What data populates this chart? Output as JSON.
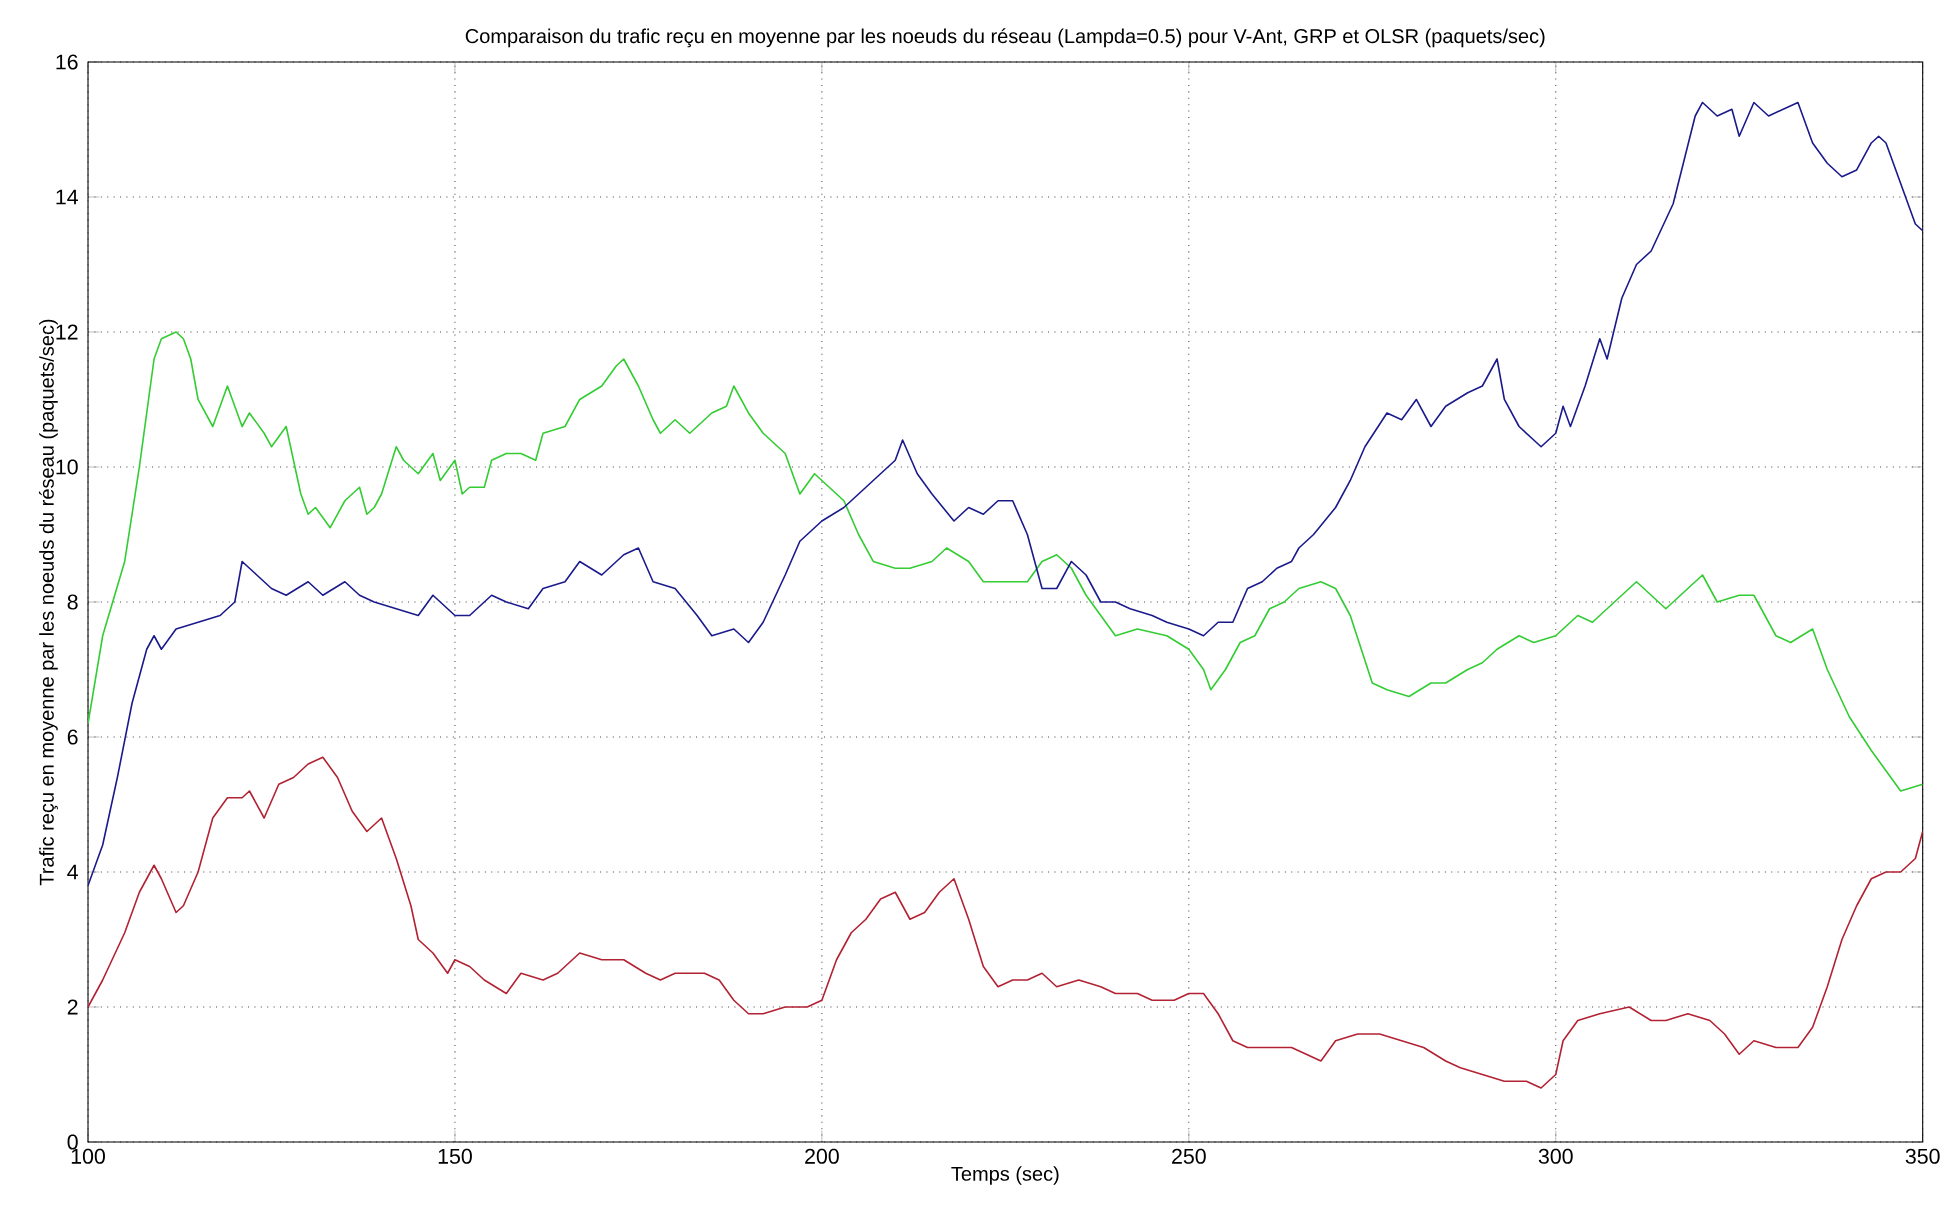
{
  "chart_data": {
    "type": "line",
    "title": "Comparaison du trafic reçu en moyenne par les noeuds du réseau (Lampda=0.5) pour V-Ant, GRP et OLSR  (paquets/sec)",
    "xlabel": "Temps (sec)",
    "ylabel": "Trafic reçu en moyenne par les noeuds du réseau (paquets/sec)",
    "xlim": [
      100,
      350
    ],
    "ylim": [
      0,
      16
    ],
    "xticks": [
      100,
      150,
      200,
      250,
      300,
      350
    ],
    "yticks": [
      0,
      2,
      4,
      6,
      8,
      10,
      12,
      14,
      16
    ],
    "grid": true,
    "line_style": "solid",
    "marker": "none",
    "series": [
      {
        "color": "#33cc33",
        "x": [
          100,
          102,
          105,
          107,
          109,
          110,
          112,
          113,
          114,
          115,
          117,
          119,
          120,
          121,
          122,
          124,
          125,
          127,
          129,
          130,
          131,
          133,
          135,
          137,
          138,
          139,
          140,
          142,
          143,
          145,
          147,
          148,
          150,
          151,
          152,
          154,
          155,
          157,
          159,
          161,
          162,
          165,
          167,
          170,
          172,
          173,
          175,
          177,
          178,
          180,
          182,
          185,
          187,
          188,
          190,
          192,
          195,
          197,
          199,
          200,
          203,
          205,
          207,
          210,
          212,
          215,
          217,
          220,
          222,
          225,
          228,
          230,
          232,
          234,
          236,
          238,
          240,
          243,
          247,
          250,
          252,
          253,
          255,
          257,
          259,
          261,
          263,
          265,
          268,
          270,
          272,
          275,
          277,
          280,
          283,
          285,
          288,
          290,
          292,
          295,
          297,
          300,
          303,
          305,
          308,
          311,
          313,
          315,
          318,
          320,
          322,
          325,
          327,
          330,
          332,
          335,
          337,
          340,
          343,
          345,
          347,
          350
        ],
        "values": [
          6.2,
          7.5,
          8.6,
          10,
          11.6,
          11.9,
          12.0,
          11.9,
          11.6,
          11.0,
          10.6,
          11.2,
          10.9,
          10.6,
          10.8,
          10.5,
          10.3,
          10.6,
          9.6,
          9.3,
          9.4,
          9.1,
          9.5,
          9.7,
          9.3,
          9.4,
          9.6,
          10.3,
          10.1,
          9.9,
          10.2,
          9.8,
          10.1,
          9.6,
          9.7,
          9.7,
          10.1,
          10.2,
          10.2,
          10.1,
          10.5,
          10.6,
          11.0,
          11.2,
          11.5,
          11.6,
          11.2,
          10.7,
          10.5,
          10.7,
          10.5,
          10.8,
          10.9,
          11.2,
          10.8,
          10.5,
          10.2,
          9.6,
          9.9,
          9.8,
          9.5,
          9.0,
          8.6,
          8.5,
          8.5,
          8.6,
          8.8,
          8.6,
          8.3,
          8.3,
          8.3,
          8.6,
          8.7,
          8.5,
          8.1,
          7.8,
          7.5,
          7.6,
          7.5,
          7.3,
          7.0,
          6.7,
          7.0,
          7.4,
          7.5,
          7.9,
          8.0,
          8.2,
          8.3,
          8.2,
          7.8,
          6.8,
          6.7,
          6.6,
          6.8,
          6.8,
          7.0,
          7.1,
          7.3,
          7.5,
          7.4,
          7.5,
          7.8,
          7.7,
          8.0,
          8.3,
          8.1,
          7.9,
          8.2,
          8.4,
          8.0,
          8.1,
          8.1,
          7.5,
          7.4,
          7.6,
          7.0,
          6.3,
          5.8,
          5.5,
          5.2,
          5.3
        ]
      },
      {
        "color": "#1a1a8c",
        "x": [
          100,
          102,
          104,
          106,
          108,
          109,
          110,
          112,
          115,
          118,
          120,
          121,
          123,
          125,
          127,
          130,
          132,
          135,
          137,
          139,
          142,
          145,
          147,
          150,
          152,
          155,
          157,
          160,
          162,
          165,
          167,
          170,
          173,
          175,
          177,
          180,
          183,
          185,
          188,
          190,
          192,
          195,
          197,
          200,
          203,
          205,
          207,
          210,
          211,
          213,
          215,
          218,
          220,
          222,
          224,
          226,
          228,
          230,
          232,
          234,
          236,
          238,
          240,
          242,
          245,
          247,
          250,
          252,
          254,
          256,
          258,
          260,
          262,
          264,
          265,
          267,
          270,
          272,
          274,
          277,
          279,
          281,
          283,
          285,
          288,
          290,
          292,
          293,
          295,
          297,
          298,
          300,
          301,
          302,
          304,
          306,
          307,
          309,
          311,
          313,
          316,
          319,
          320,
          322,
          324,
          325,
          327,
          329,
          331,
          333,
          335,
          337,
          339,
          341,
          343,
          344,
          345,
          347,
          349,
          350
        ],
        "values": [
          3.8,
          4.4,
          5.4,
          6.5,
          7.3,
          7.5,
          7.3,
          7.6,
          7.7,
          7.8,
          8.0,
          8.6,
          8.4,
          8.2,
          8.1,
          8.3,
          8.1,
          8.3,
          8.1,
          8.0,
          7.9,
          7.8,
          8.1,
          7.8,
          7.8,
          8.1,
          8.0,
          7.9,
          8.2,
          8.3,
          8.6,
          8.4,
          8.7,
          8.8,
          8.3,
          8.2,
          7.8,
          7.5,
          7.6,
          7.4,
          7.7,
          8.4,
          8.9,
          9.2,
          9.4,
          9.6,
          9.8,
          10.1,
          10.4,
          9.9,
          9.6,
          9.2,
          9.4,
          9.3,
          9.5,
          9.5,
          9.0,
          8.2,
          8.2,
          8.6,
          8.4,
          8.0,
          8.0,
          7.9,
          7.8,
          7.7,
          7.6,
          7.5,
          7.7,
          7.7,
          8.2,
          8.3,
          8.5,
          8.6,
          8.8,
          9.0,
          9.4,
          9.8,
          10.3,
          10.8,
          10.7,
          11.0,
          10.6,
          10.9,
          11.1,
          11.2,
          11.6,
          11.0,
          10.6,
          10.4,
          10.3,
          10.5,
          10.9,
          10.6,
          11.2,
          11.9,
          11.6,
          12.5,
          13.0,
          13.2,
          13.9,
          15.2,
          15.4,
          15.2,
          15.3,
          14.9,
          15.4,
          15.2,
          15.3,
          15.4,
          14.8,
          14.5,
          14.3,
          14.4,
          14.8,
          14.9,
          14.8,
          14.2,
          13.6,
          13.5
        ]
      },
      {
        "color": "#b22233",
        "x": [
          100,
          102,
          105,
          107,
          109,
          110,
          112,
          113,
          115,
          117,
          119,
          121,
          122,
          124,
          126,
          128,
          130,
          132,
          134,
          136,
          138,
          140,
          142,
          144,
          145,
          147,
          149,
          150,
          152,
          154,
          157,
          159,
          162,
          164,
          167,
          170,
          173,
          176,
          178,
          180,
          182,
          184,
          186,
          188,
          190,
          192,
          195,
          198,
          200,
          202,
          204,
          206,
          208,
          210,
          212,
          214,
          216,
          218,
          220,
          222,
          224,
          226,
          228,
          230,
          232,
          235,
          238,
          240,
          243,
          245,
          248,
          250,
          252,
          254,
          256,
          258,
          261,
          264,
          266,
          268,
          270,
          273,
          276,
          279,
          282,
          285,
          287,
          290,
          293,
          296,
          298,
          300,
          301,
          303,
          306,
          310,
          313,
          315,
          318,
          321,
          323,
          325,
          327,
          330,
          333,
          335,
          337,
          339,
          341,
          343,
          345,
          347,
          349,
          350
        ],
        "values": [
          2.0,
          2.4,
          3.1,
          3.7,
          4.1,
          3.9,
          3.4,
          3.5,
          4.0,
          4.8,
          5.1,
          5.1,
          5.2,
          4.8,
          5.3,
          5.4,
          5.6,
          5.7,
          5.4,
          4.9,
          4.6,
          4.8,
          4.2,
          3.5,
          3.0,
          2.8,
          2.5,
          2.7,
          2.6,
          2.4,
          2.2,
          2.5,
          2.4,
          2.5,
          2.8,
          2.7,
          2.7,
          2.5,
          2.4,
          2.5,
          2.5,
          2.5,
          2.4,
          2.1,
          1.9,
          1.9,
          2.0,
          2.0,
          2.1,
          2.7,
          3.1,
          3.3,
          3.6,
          3.7,
          3.3,
          3.4,
          3.7,
          3.9,
          3.3,
          2.6,
          2.3,
          2.4,
          2.4,
          2.5,
          2.3,
          2.4,
          2.3,
          2.2,
          2.2,
          2.1,
          2.1,
          2.2,
          2.2,
          1.9,
          1.5,
          1.4,
          1.4,
          1.4,
          1.3,
          1.2,
          1.5,
          1.6,
          1.6,
          1.5,
          1.4,
          1.2,
          1.1,
          1.0,
          0.9,
          0.9,
          0.8,
          1.0,
          1.5,
          1.8,
          1.9,
          2.0,
          1.8,
          1.8,
          1.9,
          1.8,
          1.6,
          1.3,
          1.5,
          1.4,
          1.4,
          1.7,
          2.3,
          3.0,
          3.5,
          3.9,
          4.0,
          4.0,
          4.2,
          4.6
        ]
      }
    ]
  }
}
